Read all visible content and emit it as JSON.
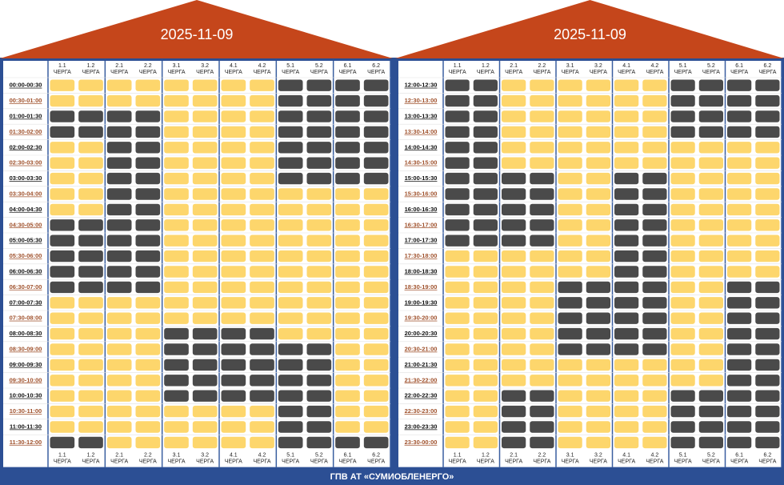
{
  "queues": [
    "1.1",
    "1.2",
    "2.1",
    "2.2",
    "3.1",
    "3.2",
    "4.1",
    "4.2",
    "5.1",
    "5.2",
    "6.1",
    "6.2"
  ],
  "queue_word": "ЧЕРГА",
  "footer": "ГПВ АТ «СУМИОБЛЕНЕРГО»",
  "panels": [
    {
      "date": "2025-11-09",
      "rows": [
        {
          "time": "00:00-00:30",
          "cells": [
            0,
            0,
            0,
            0,
            0,
            0,
            0,
            0,
            1,
            1,
            1,
            1
          ]
        },
        {
          "time": "00:30-01:00",
          "cells": [
            0,
            0,
            0,
            0,
            0,
            0,
            0,
            0,
            1,
            1,
            1,
            1
          ]
        },
        {
          "time": "01:00-01:30",
          "cells": [
            1,
            1,
            1,
            1,
            0,
            0,
            0,
            0,
            1,
            1,
            1,
            1
          ]
        },
        {
          "time": "01:30-02:00",
          "cells": [
            1,
            1,
            1,
            1,
            0,
            0,
            0,
            0,
            1,
            1,
            1,
            1
          ]
        },
        {
          "time": "02:00-02:30",
          "cells": [
            0,
            0,
            1,
            1,
            0,
            0,
            0,
            0,
            1,
            1,
            1,
            1
          ]
        },
        {
          "time": "02:30-03:00",
          "cells": [
            0,
            0,
            1,
            1,
            0,
            0,
            0,
            0,
            1,
            1,
            1,
            1
          ]
        },
        {
          "time": "03:00-03:30",
          "cells": [
            0,
            0,
            1,
            1,
            0,
            0,
            0,
            0,
            1,
            1,
            1,
            1
          ]
        },
        {
          "time": "03:30-04:00",
          "cells": [
            0,
            0,
            1,
            1,
            0,
            0,
            0,
            0,
            0,
            0,
            0,
            0
          ]
        },
        {
          "time": "04:00-04:30",
          "cells": [
            0,
            0,
            1,
            1,
            0,
            0,
            0,
            0,
            0,
            0,
            0,
            0
          ]
        },
        {
          "time": "04:30-05:00",
          "cells": [
            1,
            1,
            1,
            1,
            0,
            0,
            0,
            0,
            0,
            0,
            0,
            0
          ]
        },
        {
          "time": "05:00-05:30",
          "cells": [
            1,
            1,
            1,
            1,
            0,
            0,
            0,
            0,
            0,
            0,
            0,
            0
          ]
        },
        {
          "time": "05:30-06:00",
          "cells": [
            1,
            1,
            1,
            1,
            0,
            0,
            0,
            0,
            0,
            0,
            0,
            0
          ]
        },
        {
          "time": "06:00-06:30",
          "cells": [
            1,
            1,
            1,
            1,
            0,
            0,
            0,
            0,
            0,
            0,
            0,
            0
          ]
        },
        {
          "time": "06:30-07:00",
          "cells": [
            1,
            1,
            1,
            1,
            0,
            0,
            0,
            0,
            0,
            0,
            0,
            0
          ]
        },
        {
          "time": "07:00-07:30",
          "cells": [
            0,
            0,
            0,
            0,
            0,
            0,
            0,
            0,
            0,
            0,
            0,
            0
          ]
        },
        {
          "time": "07:30-08:00",
          "cells": [
            0,
            0,
            0,
            0,
            0,
            0,
            0,
            0,
            0,
            0,
            0,
            0
          ]
        },
        {
          "time": "08:00-08:30",
          "cells": [
            0,
            0,
            0,
            0,
            1,
            1,
            1,
            1,
            0,
            0,
            0,
            0
          ]
        },
        {
          "time": "08:30-09:00",
          "cells": [
            0,
            0,
            0,
            0,
            1,
            1,
            1,
            1,
            1,
            1,
            0,
            0
          ]
        },
        {
          "time": "09:00-09:30",
          "cells": [
            0,
            0,
            0,
            0,
            1,
            1,
            1,
            1,
            1,
            1,
            0,
            0
          ]
        },
        {
          "time": "09:30-10:00",
          "cells": [
            0,
            0,
            0,
            0,
            1,
            1,
            1,
            1,
            1,
            1,
            0,
            0
          ]
        },
        {
          "time": "10:00-10:30",
          "cells": [
            0,
            0,
            0,
            0,
            1,
            1,
            1,
            1,
            1,
            1,
            0,
            0
          ]
        },
        {
          "time": "10:30-11:00",
          "cells": [
            0,
            0,
            0,
            0,
            0,
            0,
            0,
            0,
            1,
            1,
            0,
            0
          ]
        },
        {
          "time": "11:00-11:30",
          "cells": [
            0,
            0,
            0,
            0,
            0,
            0,
            0,
            0,
            1,
            1,
            0,
            0
          ]
        },
        {
          "time": "11:30-12:00",
          "cells": [
            1,
            1,
            0,
            0,
            0,
            0,
            0,
            0,
            1,
            1,
            1,
            1
          ]
        }
      ]
    },
    {
      "date": "2025-11-09",
      "rows": [
        {
          "time": "12:00-12:30",
          "cells": [
            1,
            1,
            0,
            0,
            0,
            0,
            0,
            0,
            1,
            1,
            1,
            1
          ]
        },
        {
          "time": "12:30-13:00",
          "cells": [
            1,
            1,
            0,
            0,
            0,
            0,
            0,
            0,
            1,
            1,
            1,
            1
          ]
        },
        {
          "time": "13:00-13:30",
          "cells": [
            1,
            1,
            0,
            0,
            0,
            0,
            0,
            0,
            1,
            1,
            1,
            1
          ]
        },
        {
          "time": "13:30-14:00",
          "cells": [
            1,
            1,
            0,
            0,
            0,
            0,
            0,
            0,
            1,
            1,
            1,
            1
          ]
        },
        {
          "time": "14:00-14:30",
          "cells": [
            1,
            1,
            0,
            0,
            0,
            0,
            0,
            0,
            0,
            0,
            0,
            0
          ]
        },
        {
          "time": "14:30-15:00",
          "cells": [
            1,
            1,
            0,
            0,
            0,
            0,
            0,
            0,
            0,
            0,
            0,
            0
          ]
        },
        {
          "time": "15:00-15:30",
          "cells": [
            1,
            1,
            1,
            1,
            0,
            0,
            1,
            1,
            0,
            0,
            0,
            0
          ]
        },
        {
          "time": "15:30-16:00",
          "cells": [
            1,
            1,
            1,
            1,
            0,
            0,
            1,
            1,
            0,
            0,
            0,
            0
          ]
        },
        {
          "time": "16:00-16:30",
          "cells": [
            1,
            1,
            1,
            1,
            0,
            0,
            1,
            1,
            0,
            0,
            0,
            0
          ]
        },
        {
          "time": "16:30-17:00",
          "cells": [
            1,
            1,
            1,
            1,
            0,
            0,
            1,
            1,
            0,
            0,
            0,
            0
          ]
        },
        {
          "time": "17:00-17:30",
          "cells": [
            1,
            1,
            1,
            1,
            0,
            0,
            1,
            1,
            0,
            0,
            0,
            0
          ]
        },
        {
          "time": "17:30-18:00",
          "cells": [
            0,
            0,
            0,
            0,
            0,
            0,
            1,
            1,
            0,
            0,
            0,
            0
          ]
        },
        {
          "time": "18:00-18:30",
          "cells": [
            0,
            0,
            0,
            0,
            0,
            0,
            1,
            1,
            0,
            0,
            0,
            0
          ]
        },
        {
          "time": "18:30-19:00",
          "cells": [
            0,
            0,
            0,
            0,
            1,
            1,
            1,
            1,
            0,
            0,
            1,
            1
          ]
        },
        {
          "time": "19:00-19:30",
          "cells": [
            0,
            0,
            0,
            0,
            1,
            1,
            1,
            1,
            0,
            0,
            1,
            1
          ]
        },
        {
          "time": "19:30-20:00",
          "cells": [
            0,
            0,
            0,
            0,
            1,
            1,
            1,
            1,
            0,
            0,
            1,
            1
          ]
        },
        {
          "time": "20:00-20:30",
          "cells": [
            0,
            0,
            0,
            0,
            1,
            1,
            1,
            1,
            0,
            0,
            1,
            1
          ]
        },
        {
          "time": "20:30-21:00",
          "cells": [
            0,
            0,
            0,
            0,
            1,
            1,
            1,
            1,
            0,
            0,
            1,
            1
          ]
        },
        {
          "time": "21:00-21:30",
          "cells": [
            0,
            0,
            0,
            0,
            0,
            0,
            0,
            0,
            0,
            0,
            1,
            1
          ]
        },
        {
          "time": "21:30-22:00",
          "cells": [
            0,
            0,
            0,
            0,
            0,
            0,
            0,
            0,
            0,
            0,
            1,
            1
          ]
        },
        {
          "time": "22:00-22:30",
          "cells": [
            0,
            0,
            1,
            1,
            0,
            0,
            0,
            0,
            1,
            1,
            1,
            1
          ]
        },
        {
          "time": "22:30-23:00",
          "cells": [
            0,
            0,
            1,
            1,
            0,
            0,
            0,
            0,
            1,
            1,
            1,
            1
          ]
        },
        {
          "time": "23:00-23:30",
          "cells": [
            0,
            0,
            1,
            1,
            0,
            0,
            0,
            0,
            1,
            1,
            1,
            1
          ]
        },
        {
          "time": "23:30-00:00",
          "cells": [
            0,
            0,
            1,
            1,
            0,
            0,
            0,
            0,
            1,
            1,
            1,
            1
          ]
        }
      ]
    }
  ]
}
